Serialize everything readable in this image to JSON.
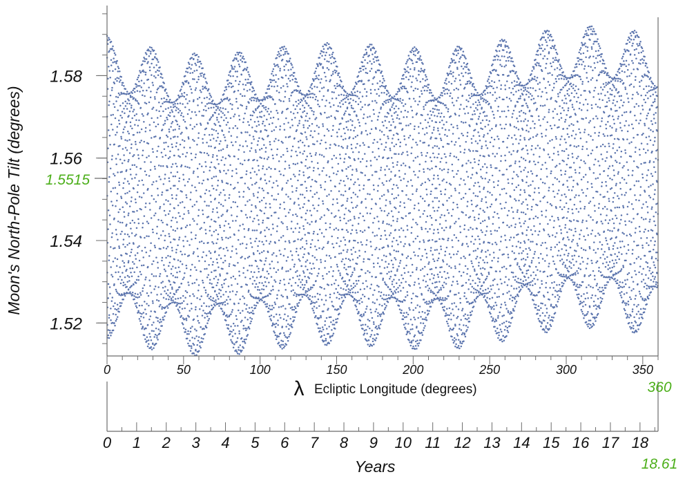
{
  "chart_data": {
    "type": "scatter",
    "ylabel": "Moon's North-Pole Tilt (degrees)",
    "xlabel_symbol": "λ",
    "xlabel": "Ecliptic Longitude (degrees)",
    "x2label": "Years",
    "xlim": [
      0,
      360
    ],
    "ylim": [
      1.512,
      1.597
    ],
    "y_ticks": [
      "1.52",
      "1.54",
      "1.56",
      "1.58"
    ],
    "x_ticks": [
      "0",
      "50",
      "100",
      "150",
      "200",
      "250",
      "300",
      "350"
    ],
    "year_ticks": [
      "0",
      "1",
      "2",
      "3",
      "4",
      "5",
      "6",
      "7",
      "8",
      "9",
      "10",
      "11",
      "12",
      "13",
      "14",
      "15",
      "16",
      "17",
      "18"
    ],
    "year_range": [
      0,
      18.61
    ],
    "highlight_y_label": "1.5515",
    "highlight_x_end": "360",
    "highlight_year_end": "18.61",
    "dot_color": "#5b74ad",
    "highlight_color": "#4caf1a",
    "series": [
      {
        "mean": 1.5515,
        "amplitude": 0.0305,
        "amplitude_modulation_peaks_deg": [
          0,
          127
        ],
        "envelope_oscillation_period_deg": 28.7,
        "upper_peaks": [
          [
            12,
            1.5875
          ],
          [
            68,
            1.5935
          ],
          [
            125,
            1.5935
          ],
          [
            183,
            1.5895
          ],
          [
            240,
            1.5855
          ],
          [
            300,
            1.584
          ],
          [
            360,
            1.5865
          ]
        ],
        "upper_troughs": [
          [
            40,
            1.5715
          ],
          [
            97,
            1.5745
          ],
          [
            155,
            1.5725
          ],
          [
            212,
            1.5665
          ],
          [
            270,
            1.5635
          ],
          [
            330,
            1.565
          ]
        ],
        "lower_troughs": [
          [
            8,
            1.519
          ],
          [
            68,
            1.5245
          ],
          [
            125,
            1.5255
          ],
          [
            183,
            1.5205
          ],
          [
            240,
            1.5165
          ],
          [
            300,
            1.515
          ],
          [
            360,
            1.5175
          ]
        ],
        "lower_peaks": [
          [
            40,
            1.53
          ],
          [
            97,
            1.5335
          ],
          [
            155,
            1.5315
          ],
          [
            212,
            1.5265
          ],
          [
            270,
            1.5235
          ],
          [
            330,
            1.524
          ]
        ]
      }
    ]
  }
}
